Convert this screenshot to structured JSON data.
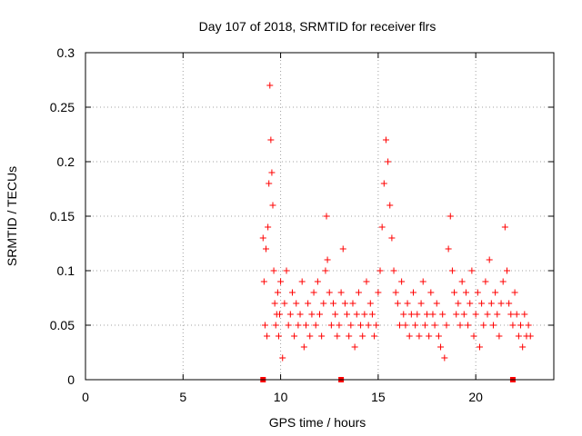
{
  "chart_data": {
    "type": "scatter",
    "title": "Day 107 of 2018, SRMTID for receiver flrs",
    "xlabel": "GPS time / hours",
    "ylabel": "SRMTID / TECUs",
    "xlim": [
      0,
      24
    ],
    "ylim": [
      0,
      0.3
    ],
    "xticks": [
      0,
      5,
      10,
      15,
      20
    ],
    "xtick_labels": [
      "0",
      "5",
      "10",
      "15",
      "20"
    ],
    "yticks": [
      0,
      0.05,
      0.1,
      0.15,
      0.2,
      0.25,
      0.3
    ],
    "ytick_labels": [
      "0",
      "0.05",
      "0.1",
      "0.15",
      "0.2",
      "0.25",
      "0.3"
    ],
    "grid": true,
    "marker": "+",
    "color": "#ff0000",
    "series": [
      {
        "name": "SRMTID",
        "points": [
          [
            9.1,
            0.13
          ],
          [
            9.15,
            0.09
          ],
          [
            9.2,
            0.05
          ],
          [
            9.25,
            0.12
          ],
          [
            9.3,
            0.04
          ],
          [
            9.35,
            0.14
          ],
          [
            9.4,
            0.18
          ],
          [
            9.45,
            0.27
          ],
          [
            9.5,
            0.22
          ],
          [
            9.55,
            0.19
          ],
          [
            9.6,
            0.16
          ],
          [
            9.65,
            0.1
          ],
          [
            9.7,
            0.07
          ],
          [
            9.75,
            0.05
          ],
          [
            9.8,
            0.06
          ],
          [
            9.85,
            0.08
          ],
          [
            9.9,
            0.04
          ],
          [
            9.95,
            0.06
          ],
          [
            10.0,
            0.09
          ],
          [
            10.1,
            0.02
          ],
          [
            10.2,
            0.07
          ],
          [
            10.3,
            0.1
          ],
          [
            10.4,
            0.05
          ],
          [
            10.5,
            0.06
          ],
          [
            10.6,
            0.08
          ],
          [
            10.7,
            0.04
          ],
          [
            10.8,
            0.07
          ],
          [
            10.9,
            0.05
          ],
          [
            11.0,
            0.06
          ],
          [
            11.1,
            0.09
          ],
          [
            11.2,
            0.03
          ],
          [
            11.3,
            0.05
          ],
          [
            11.4,
            0.07
          ],
          [
            11.5,
            0.04
          ],
          [
            11.6,
            0.06
          ],
          [
            11.7,
            0.08
          ],
          [
            11.8,
            0.05
          ],
          [
            11.9,
            0.09
          ],
          [
            12.0,
            0.06
          ],
          [
            12.1,
            0.04
          ],
          [
            12.2,
            0.07
          ],
          [
            12.3,
            0.1
          ],
          [
            12.35,
            0.15
          ],
          [
            12.4,
            0.11
          ],
          [
            12.5,
            0.08
          ],
          [
            12.6,
            0.05
          ],
          [
            12.7,
            0.07
          ],
          [
            12.8,
            0.06
          ],
          [
            12.9,
            0.04
          ],
          [
            13.0,
            0.05
          ],
          [
            13.1,
            0.08
          ],
          [
            13.2,
            0.12
          ],
          [
            13.3,
            0.07
          ],
          [
            13.4,
            0.06
          ],
          [
            13.5,
            0.04
          ],
          [
            13.6,
            0.05
          ],
          [
            13.7,
            0.07
          ],
          [
            13.8,
            0.03
          ],
          [
            13.9,
            0.06
          ],
          [
            14.0,
            0.08
          ],
          [
            14.1,
            0.05
          ],
          [
            14.2,
            0.04
          ],
          [
            14.3,
            0.06
          ],
          [
            14.4,
            0.09
          ],
          [
            14.5,
            0.05
          ],
          [
            14.6,
            0.07
          ],
          [
            14.7,
            0.06
          ],
          [
            14.8,
            0.04
          ],
          [
            14.9,
            0.05
          ],
          [
            15.0,
            0.08
          ],
          [
            15.1,
            0.1
          ],
          [
            15.2,
            0.14
          ],
          [
            15.3,
            0.18
          ],
          [
            15.4,
            0.22
          ],
          [
            15.5,
            0.2
          ],
          [
            15.6,
            0.16
          ],
          [
            15.7,
            0.13
          ],
          [
            15.8,
            0.1
          ],
          [
            15.9,
            0.08
          ],
          [
            16.0,
            0.07
          ],
          [
            16.1,
            0.05
          ],
          [
            16.2,
            0.09
          ],
          [
            16.3,
            0.06
          ],
          [
            16.4,
            0.05
          ],
          [
            16.5,
            0.07
          ],
          [
            16.6,
            0.04
          ],
          [
            16.7,
            0.06
          ],
          [
            16.8,
            0.08
          ],
          [
            16.9,
            0.05
          ],
          [
            17.0,
            0.06
          ],
          [
            17.1,
            0.04
          ],
          [
            17.2,
            0.07
          ],
          [
            17.3,
            0.09
          ],
          [
            17.4,
            0.05
          ],
          [
            17.5,
            0.06
          ],
          [
            17.6,
            0.04
          ],
          [
            17.7,
            0.08
          ],
          [
            17.8,
            0.06
          ],
          [
            17.9,
            0.05
          ],
          [
            18.0,
            0.07
          ],
          [
            18.1,
            0.04
          ],
          [
            18.2,
            0.03
          ],
          [
            18.3,
            0.06
          ],
          [
            18.4,
            0.02
          ],
          [
            18.5,
            0.05
          ],
          [
            18.6,
            0.12
          ],
          [
            18.7,
            0.15
          ],
          [
            18.8,
            0.1
          ],
          [
            18.9,
            0.08
          ],
          [
            19.0,
            0.06
          ],
          [
            19.1,
            0.07
          ],
          [
            19.2,
            0.05
          ],
          [
            19.3,
            0.09
          ],
          [
            19.4,
            0.06
          ],
          [
            19.5,
            0.08
          ],
          [
            19.6,
            0.05
          ],
          [
            19.7,
            0.07
          ],
          [
            19.8,
            0.1
          ],
          [
            19.9,
            0.04
          ],
          [
            20.0,
            0.06
          ],
          [
            20.1,
            0.08
          ],
          [
            20.2,
            0.03
          ],
          [
            20.3,
            0.07
          ],
          [
            20.4,
            0.05
          ],
          [
            20.5,
            0.09
          ],
          [
            20.6,
            0.06
          ],
          [
            20.7,
            0.11
          ],
          [
            20.8,
            0.07
          ],
          [
            20.9,
            0.05
          ],
          [
            21.0,
            0.08
          ],
          [
            21.1,
            0.06
          ],
          [
            21.2,
            0.04
          ],
          [
            21.3,
            0.07
          ],
          [
            21.4,
            0.09
          ],
          [
            21.5,
            0.14
          ],
          [
            21.6,
            0.1
          ],
          [
            21.7,
            0.07
          ],
          [
            21.8,
            0.06
          ],
          [
            21.9,
            0.05
          ],
          [
            22.0,
            0.08
          ],
          [
            22.1,
            0.06
          ],
          [
            22.2,
            0.04
          ],
          [
            22.3,
            0.05
          ],
          [
            22.4,
            0.03
          ],
          [
            22.5,
            0.06
          ],
          [
            22.6,
            0.04
          ],
          [
            22.7,
            0.05
          ],
          [
            22.8,
            0.04
          ]
        ]
      }
    ],
    "axis_markers_x": [
      9.1,
      13.1,
      21.9
    ]
  }
}
